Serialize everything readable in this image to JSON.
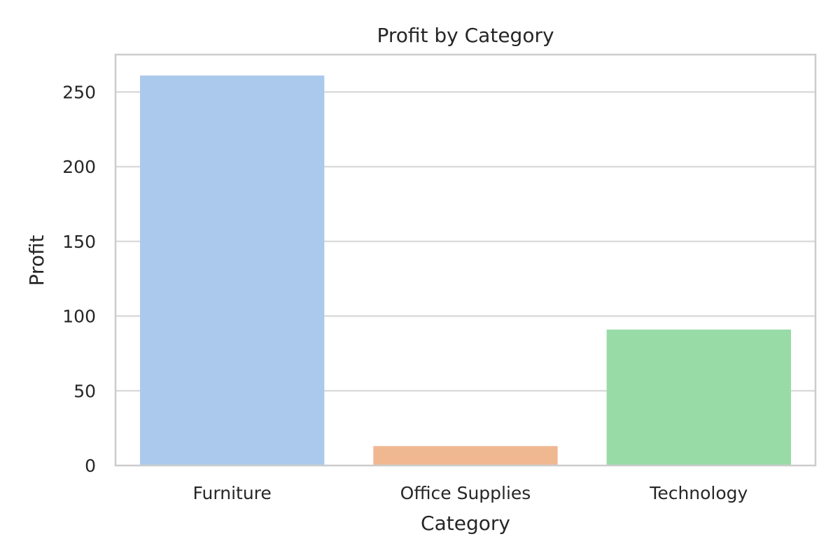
{
  "chart_data": {
    "type": "bar",
    "title": "Profit by Category",
    "xlabel": "Category",
    "ylabel": "Profit",
    "categories": [
      "Furniture",
      "Office Supplies",
      "Technology"
    ],
    "values": [
      261,
      13,
      91
    ],
    "colors": [
      "#abc9ec",
      "#f0b891",
      "#98dba7"
    ],
    "ylim": [
      0,
      275
    ],
    "yticks": [
      0,
      50,
      100,
      150,
      200,
      250
    ],
    "grid": true,
    "legend": "none"
  }
}
